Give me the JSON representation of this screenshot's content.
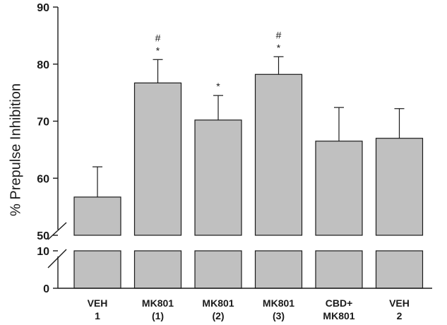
{
  "chart_data": {
    "type": "bar",
    "title": "",
    "xlabel": "",
    "ylabel": "% Prepulse Inhibition",
    "axis_break": {
      "lower_range": [
        0,
        10
      ],
      "upper_range": [
        50,
        90
      ]
    },
    "yticks_lower": [
      "0",
      "10"
    ],
    "yticks_upper": [
      "50",
      "60",
      "70",
      "80",
      "90"
    ],
    "categories": [
      {
        "line1": "VEH",
        "line2": "1"
      },
      {
        "line1": "MK801",
        "line2": "(1)"
      },
      {
        "line1": "MK801",
        "line2": "(2)"
      },
      {
        "line1": "MK801",
        "line2": "(3)"
      },
      {
        "line1": "CBD+",
        "line2": "MK801"
      },
      {
        "line1": "VEH",
        "line2": "2"
      }
    ],
    "values": [
      56.7,
      76.7,
      70.2,
      78.2,
      66.5,
      67.0
    ],
    "errors": [
      5.3,
      4.1,
      4.3,
      3.1,
      5.9,
      5.2
    ],
    "annotations": [
      {
        "hash": "",
        "star": ""
      },
      {
        "hash": "#",
        "star": "*"
      },
      {
        "hash": "",
        "star": "*"
      },
      {
        "hash": "#",
        "star": "*"
      },
      {
        "hash": "",
        "star": ""
      },
      {
        "hash": "",
        "star": ""
      }
    ]
  }
}
